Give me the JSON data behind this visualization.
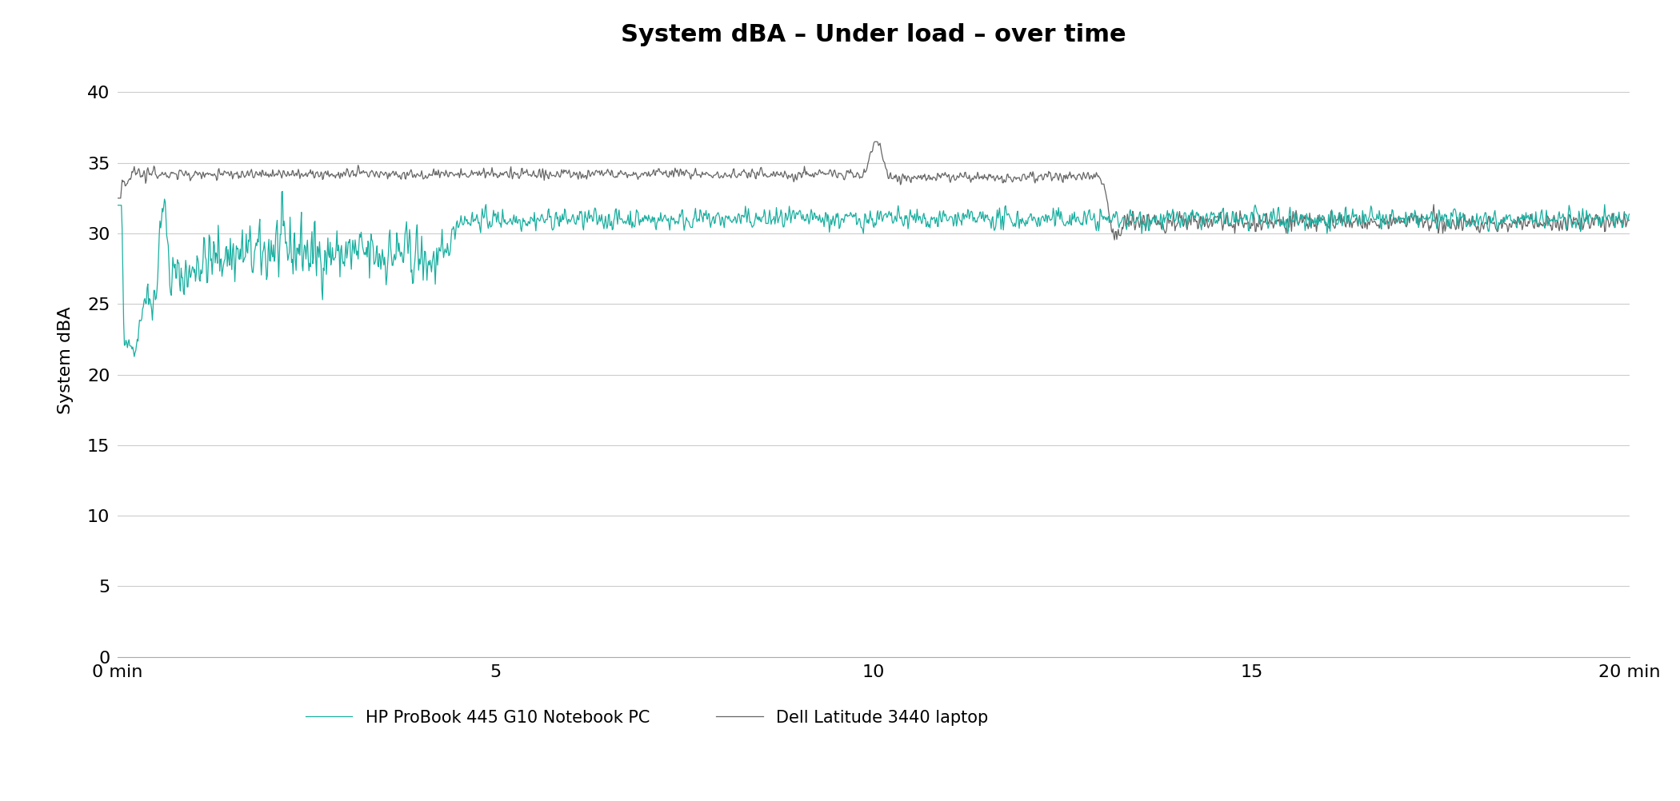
{
  "title": "System dBA – Under load – over time",
  "ylabel": "System dBA",
  "xlabel_ticks": [
    "0 min",
    "5",
    "10",
    "15",
    "20 min"
  ],
  "xlabel_tick_positions": [
    0,
    5,
    10,
    15,
    20
  ],
  "ylim": [
    0,
    42
  ],
  "xlim": [
    0,
    20
  ],
  "yticks": [
    0,
    5,
    10,
    15,
    20,
    25,
    30,
    35,
    40
  ],
  "hp_color": "#1AAFA0",
  "dell_color": "#666666",
  "hp_label": "HP ProBook 445 G10 Notebook PC",
  "dell_label": "Dell Latitude 3440 laptop",
  "background_color": "#ffffff",
  "grid_color": "#cccccc",
  "title_fontsize": 22,
  "label_fontsize": 16,
  "tick_fontsize": 16,
  "legend_fontsize": 15
}
